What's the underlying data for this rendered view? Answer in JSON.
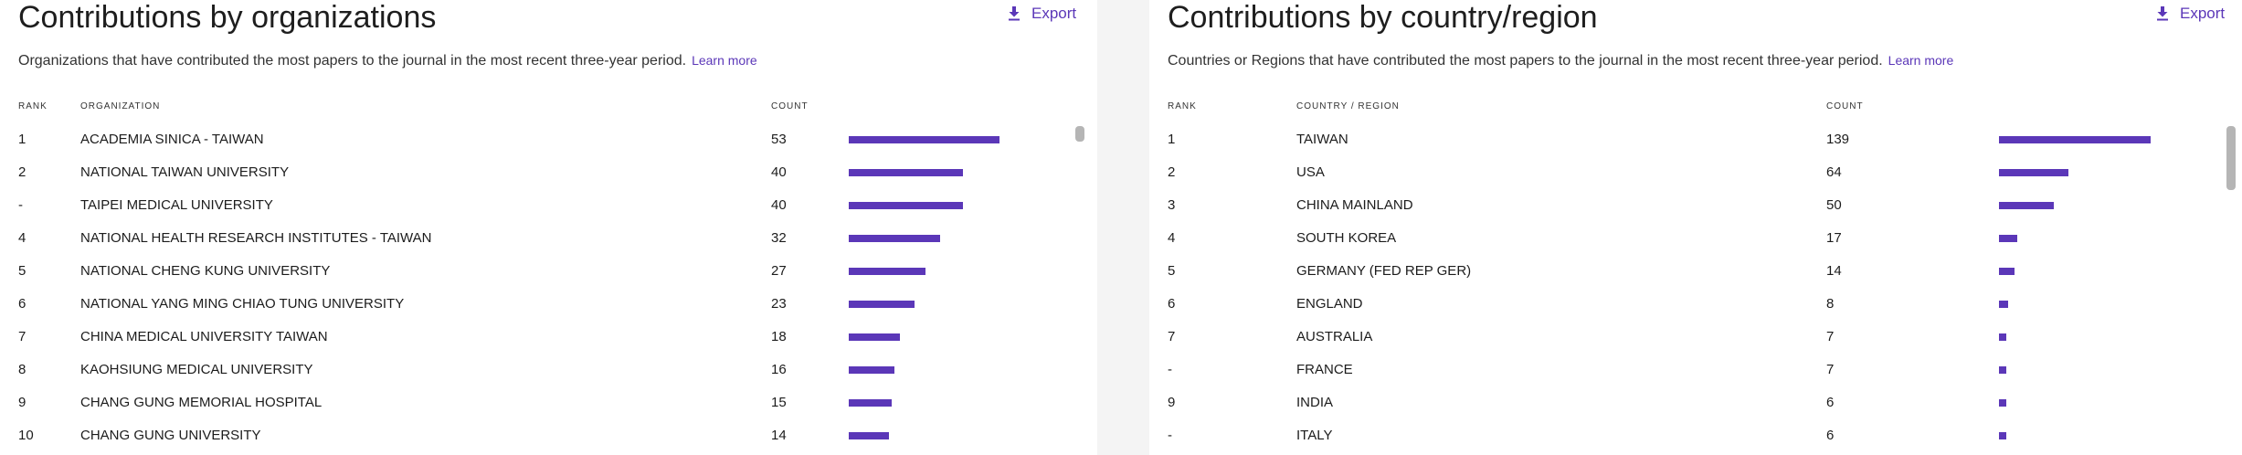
{
  "organizations": {
    "title": "Contributions by organizations",
    "export_label": "Export",
    "description": "Organizations that have contributed the most papers to the journal in the most recent three-year period.",
    "learn_more": "Learn more",
    "columns": {
      "rank": "RANK",
      "name": "ORGANIZATION",
      "count": "COUNT"
    },
    "bar_color": "#5b37b8",
    "rows": [
      {
        "rank": "1",
        "name": "ACADEMIA SINICA - TAIWAN",
        "count": "53"
      },
      {
        "rank": "2",
        "name": "NATIONAL TAIWAN UNIVERSITY",
        "count": "40"
      },
      {
        "rank": "-",
        "name": "TAIPEI MEDICAL UNIVERSITY",
        "count": "40"
      },
      {
        "rank": "4",
        "name": "NATIONAL HEALTH RESEARCH INSTITUTES - TAIWAN",
        "count": "32"
      },
      {
        "rank": "5",
        "name": "NATIONAL CHENG KUNG UNIVERSITY",
        "count": "27"
      },
      {
        "rank": "6",
        "name": "NATIONAL YANG MING CHIAO TUNG UNIVERSITY",
        "count": "23"
      },
      {
        "rank": "7",
        "name": "CHINA MEDICAL UNIVERSITY TAIWAN",
        "count": "18"
      },
      {
        "rank": "8",
        "name": "KAOHSIUNG MEDICAL UNIVERSITY",
        "count": "16"
      },
      {
        "rank": "9",
        "name": "CHANG GUNG MEMORIAL HOSPITAL",
        "count": "15"
      },
      {
        "rank": "10",
        "name": "CHANG GUNG UNIVERSITY",
        "count": "14"
      }
    ]
  },
  "countries": {
    "title": "Contributions by country/region",
    "export_label": "Export",
    "description": "Countries or Regions that have contributed the most papers to the journal in the most recent three-year period.",
    "learn_more": "Learn more",
    "columns": {
      "rank": "RANK",
      "name": "COUNTRY / REGION",
      "count": "COUNT"
    },
    "bar_color": "#5b37b8",
    "rows": [
      {
        "rank": "1",
        "name": "TAIWAN",
        "count": "139"
      },
      {
        "rank": "2",
        "name": "USA",
        "count": "64"
      },
      {
        "rank": "3",
        "name": "CHINA MAINLAND",
        "count": "50"
      },
      {
        "rank": "4",
        "name": "SOUTH KOREA",
        "count": "17"
      },
      {
        "rank": "5",
        "name": "GERMANY (FED REP GER)",
        "count": "14"
      },
      {
        "rank": "6",
        "name": "ENGLAND",
        "count": "8"
      },
      {
        "rank": "7",
        "name": "AUSTRALIA",
        "count": "7"
      },
      {
        "rank": "-",
        "name": "FRANCE",
        "count": "7"
      },
      {
        "rank": "9",
        "name": "INDIA",
        "count": "6"
      },
      {
        "rank": "-",
        "name": "ITALY",
        "count": "6"
      }
    ]
  }
}
